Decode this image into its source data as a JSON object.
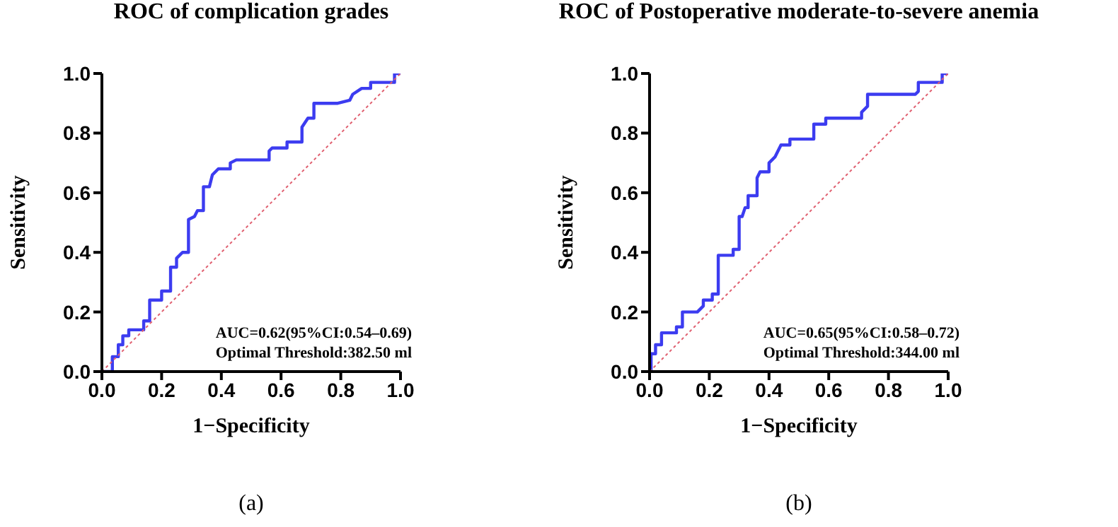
{
  "chart_data": [
    {
      "type": "line",
      "title": "ROC of complication grades",
      "xlabel": "1−Specificity",
      "ylabel": "Sensitivity",
      "xlim": [
        0,
        1
      ],
      "ylim": [
        0,
        1
      ],
      "xticks": [
        {
          "value": 0,
          "label": "0.0"
        },
        {
          "value": 0.2,
          "label": "0.2"
        },
        {
          "value": 0.4,
          "label": "0.4"
        },
        {
          "value": 0.6,
          "label": "0.6"
        },
        {
          "value": 0.8,
          "label": "0.8"
        },
        {
          "value": 1,
          "label": "1.0"
        }
      ],
      "yticks": [
        {
          "value": 0,
          "label": "0.0"
        },
        {
          "value": 0.2,
          "label": "0.2"
        },
        {
          "value": 0.4,
          "label": "0.4"
        },
        {
          "value": 0.6,
          "label": "0.6"
        },
        {
          "value": 0.8,
          "label": "0.8"
        },
        {
          "value": 1,
          "label": "1.0"
        }
      ],
      "grid": false,
      "legend": false,
      "marker": "none",
      "series": [
        {
          "color": "#3c3cf0",
          "line_style": "solid",
          "x": [
            0,
            0.035,
            0.035,
            0.055,
            0.055,
            0.07,
            0.07,
            0.09,
            0.09,
            0.14,
            0.14,
            0.16,
            0.16,
            0.2,
            0.2,
            0.23,
            0.23,
            0.25,
            0.25,
            0.27,
            0.29,
            0.29,
            0.31,
            0.32,
            0.34,
            0.34,
            0.36,
            0.37,
            0.39,
            0.43,
            0.43,
            0.45,
            0.56,
            0.56,
            0.57,
            0.62,
            0.62,
            0.67,
            0.67,
            0.69,
            0.71,
            0.71,
            0.79,
            0.83,
            0.84,
            0.87,
            0.9,
            0.9,
            0.98,
            0.98,
            1
          ],
          "values": [
            0,
            0,
            0.05,
            0.05,
            0.09,
            0.09,
            0.12,
            0.12,
            0.14,
            0.14,
            0.17,
            0.17,
            0.24,
            0.24,
            0.27,
            0.27,
            0.35,
            0.35,
            0.38,
            0.4,
            0.4,
            0.51,
            0.52,
            0.54,
            0.54,
            0.62,
            0.62,
            0.66,
            0.68,
            0.68,
            0.7,
            0.71,
            0.71,
            0.74,
            0.75,
            0.75,
            0.77,
            0.77,
            0.82,
            0.85,
            0.85,
            0.9,
            0.9,
            0.91,
            0.93,
            0.95,
            0.95,
            0.97,
            0.97,
            1,
            1
          ]
        },
        {
          "color": "#e06070",
          "line_style": "dotted",
          "x": [
            0,
            1
          ],
          "values": [
            0,
            1
          ]
        }
      ],
      "annotations": [
        "AUC=0.62(95%CI:0.54–0.69)",
        "Optimal Threshold:382.50 ml",
        "(a)"
      ]
    },
    {
      "type": "line",
      "title": "ROC of Postoperative moderate-to-severe anemia",
      "xlabel": "1−Specificity",
      "ylabel": "Sensitivity",
      "xlim": [
        0,
        1
      ],
      "ylim": [
        0,
        1
      ],
      "xticks": [
        {
          "value": 0,
          "label": "0.0"
        },
        {
          "value": 0.2,
          "label": "0.2"
        },
        {
          "value": 0.4,
          "label": "0.4"
        },
        {
          "value": 0.6,
          "label": "0.6"
        },
        {
          "value": 0.8,
          "label": "0.8"
        },
        {
          "value": 1,
          "label": "1.0"
        }
      ],
      "yticks": [
        {
          "value": 0,
          "label": "0.0"
        },
        {
          "value": 0.2,
          "label": "0.2"
        },
        {
          "value": 0.4,
          "label": "0.4"
        },
        {
          "value": 0.6,
          "label": "0.6"
        },
        {
          "value": 0.8,
          "label": "0.8"
        },
        {
          "value": 1,
          "label": "1.0"
        }
      ],
      "grid": false,
      "legend": false,
      "marker": "none",
      "series": [
        {
          "color": "#3c3cf0",
          "line_style": "solid",
          "x": [
            0.005,
            0.005,
            0.02,
            0.02,
            0.04,
            0.04,
            0.09,
            0.09,
            0.11,
            0.11,
            0.16,
            0.18,
            0.18,
            0.21,
            0.21,
            0.23,
            0.23,
            0.28,
            0.28,
            0.3,
            0.3,
            0.31,
            0.32,
            0.33,
            0.33,
            0.36,
            0.36,
            0.37,
            0.4,
            0.4,
            0.42,
            0.43,
            0.44,
            0.47,
            0.47,
            0.55,
            0.55,
            0.59,
            0.59,
            0.71,
            0.71,
            0.73,
            0.73,
            0.89,
            0.9,
            0.9,
            0.98,
            0.98,
            1
          ],
          "values": [
            0,
            0.06,
            0.06,
            0.09,
            0.09,
            0.13,
            0.13,
            0.15,
            0.15,
            0.2,
            0.2,
            0.22,
            0.24,
            0.24,
            0.26,
            0.26,
            0.39,
            0.39,
            0.41,
            0.41,
            0.52,
            0.52,
            0.55,
            0.55,
            0.59,
            0.59,
            0.65,
            0.67,
            0.67,
            0.7,
            0.72,
            0.74,
            0.76,
            0.76,
            0.78,
            0.78,
            0.83,
            0.83,
            0.85,
            0.85,
            0.87,
            0.89,
            0.93,
            0.93,
            0.94,
            0.97,
            0.97,
            1,
            1
          ]
        },
        {
          "color": "#e06070",
          "line_style": "dotted",
          "x": [
            0,
            1
          ],
          "values": [
            0,
            1
          ]
        }
      ],
      "annotations": [
        "AUC=0.65(95%CI:0.58–0.72)",
        "Optimal Threshold:344.00 ml",
        "(b)"
      ]
    }
  ]
}
